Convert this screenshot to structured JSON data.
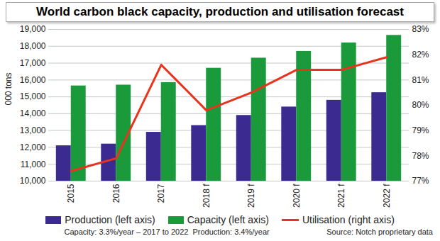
{
  "chart_data": {
    "type": "bar",
    "title": "World carbon black capacity, production and utilisation forecast",
    "y_label": "000 tons",
    "categories": [
      "2015",
      "2016",
      "2017",
      "2018 f",
      "2019 f",
      "2020 f",
      "2021 f",
      "2022 f"
    ],
    "series": [
      {
        "name": "Production (left axis)",
        "type": "bar",
        "color": "#3b2a90",
        "values": [
          12100,
          12200,
          12900,
          13300,
          13900,
          14400,
          14800,
          15250
        ]
      },
      {
        "name": "Capacity (left axis)",
        "type": "bar",
        "color": "#1b9a3c",
        "values": [
          15650,
          15700,
          15850,
          16700,
          17300,
          17700,
          18200,
          18650
        ]
      },
      {
        "name": "Utilisation (right axis)",
        "type": "line",
        "axis": "y2",
        "color": "#e8341c",
        "values": [
          77.4,
          77.9,
          81.6,
          79.8,
          80.5,
          81.4,
          81.4,
          81.9
        ]
      }
    ],
    "ylim": [
      10000,
      19000
    ],
    "yticks": [
      {
        "value": 10000,
        "label": "10,000"
      },
      {
        "value": 11000,
        "label": "11,000"
      },
      {
        "value": 12000,
        "label": "12,000"
      },
      {
        "value": 13000,
        "label": "13,000"
      },
      {
        "value": 14000,
        "label": "14,000"
      },
      {
        "value": 15000,
        "label": "15,000"
      },
      {
        "value": 16000,
        "label": "16,000"
      },
      {
        "value": 17000,
        "label": "17,000"
      },
      {
        "value": 18000,
        "label": "18,000"
      },
      {
        "value": 19000,
        "label": "19,000"
      }
    ],
    "y2lim": [
      77,
      83
    ],
    "y2ticks": [
      {
        "value": 77,
        "label": "77%"
      },
      {
        "value": 78,
        "label": "78%"
      },
      {
        "value": 79,
        "label": "79%"
      },
      {
        "value": 80,
        "label": "80%"
      },
      {
        "value": 81,
        "label": "81%"
      },
      {
        "value": 82,
        "label": "82%"
      },
      {
        "value": 83,
        "label": "83%"
      }
    ],
    "grid": true,
    "legend": "bottom",
    "annotations": [
      "Capacity: 3.3%/year – 2017 to 2022",
      "Production: 3.4%/year",
      "Source: Notch proprietary data"
    ]
  }
}
